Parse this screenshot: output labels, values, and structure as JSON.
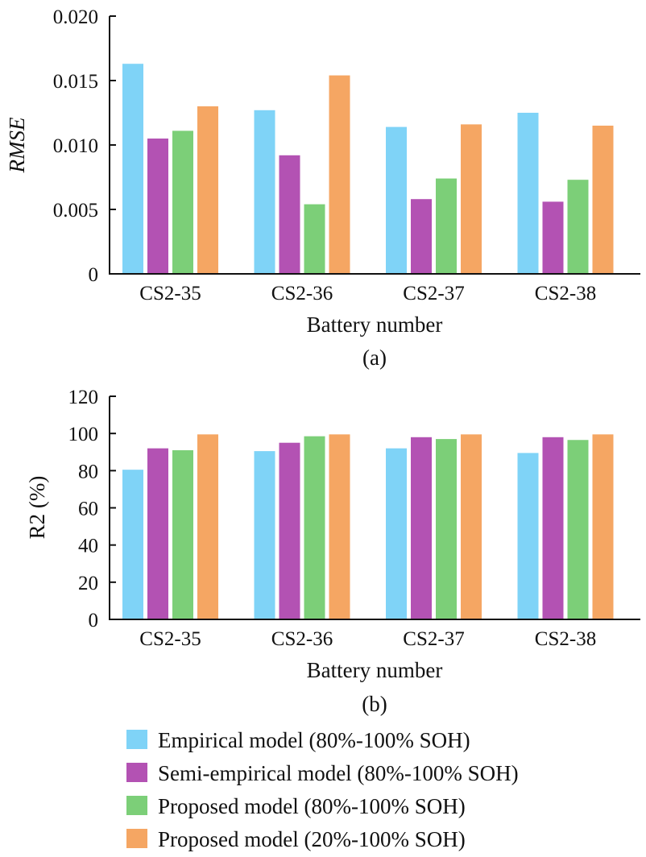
{
  "chart_data": [
    {
      "type": "bar",
      "panel_label": "(a)",
      "categories": [
        "CS2-35",
        "CS2-36",
        "CS2-37",
        "CS2-38"
      ],
      "series": [
        {
          "name": "Empirical model (80%-100% SOH)",
          "values": [
            0.0163,
            0.0127,
            0.0114,
            0.0125
          ]
        },
        {
          "name": "Semi-empirical model (80%-100% SOH)",
          "values": [
            0.0105,
            0.0092,
            0.0058,
            0.0056
          ]
        },
        {
          "name": "Proposed model (80%-100% SOH)",
          "values": [
            0.0111,
            0.0054,
            0.0074,
            0.0073
          ]
        },
        {
          "name": "Proposed model (20%-100% SOH)",
          "values": [
            0.013,
            0.0154,
            0.0116,
            0.0115
          ]
        }
      ],
      "xlabel": "Battery number",
      "ylabel": "RMSE",
      "ylim": [
        0,
        0.02
      ],
      "yticks": [
        "0",
        "0.005",
        "0.010",
        "0.015",
        "0.020"
      ],
      "grid": false
    },
    {
      "type": "bar",
      "panel_label": "(b)",
      "categories": [
        "CS2-35",
        "CS2-36",
        "CS2-37",
        "CS2-38"
      ],
      "series": [
        {
          "name": "Empirical model (80%-100% SOH)",
          "values": [
            80.5,
            90.5,
            92,
            89.5
          ]
        },
        {
          "name": "Semi-empirical model (80%-100% SOH)",
          "values": [
            92,
            95,
            98,
            98
          ]
        },
        {
          "name": "Proposed model (80%-100% SOH)",
          "values": [
            91,
            98.5,
            97,
            96.5
          ]
        },
        {
          "name": "Proposed model (20%-100% SOH)",
          "values": [
            99.5,
            99.5,
            99.5,
            99.5
          ]
        }
      ],
      "xlabel": "Battery number",
      "ylabel": "R2 (%)",
      "ylim": [
        0,
        120
      ],
      "yticks": [
        "0",
        "20",
        "40",
        "60",
        "80",
        "100",
        "120"
      ],
      "grid": false
    }
  ],
  "legend": {
    "placement": "bottom",
    "items": [
      {
        "label": "Empirical model (80%-100% SOH)",
        "color": "#7fd3f7"
      },
      {
        "label": "Semi-empirical model (80%-100% SOH)",
        "color": "#b352b3"
      },
      {
        "label": "Proposed model (80%-100% SOH)",
        "color": "#7ccf78"
      },
      {
        "label": "Proposed model (20%-100% SOH)",
        "color": "#f5a663"
      }
    ]
  }
}
